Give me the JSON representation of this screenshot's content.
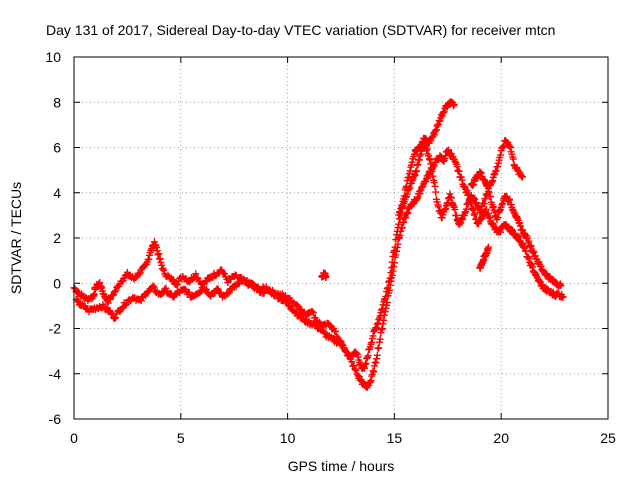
{
  "chart_data": {
    "type": "scatter",
    "title": "Day 131 of 2017, Sidereal Day-to-day VTEC variation (SDTVAR) for receiver mtcn",
    "xlabel": "GPS time / hours",
    "ylabel": "SDTVAR / TECUs",
    "xlim": [
      0,
      25
    ],
    "ylim": [
      -6,
      10
    ],
    "xticks": [
      "0",
      "5",
      "10",
      "15",
      "20",
      "25"
    ],
    "yticks": [
      "-6",
      "-4",
      "-2",
      "0",
      "2",
      "4",
      "6",
      "8",
      "10"
    ],
    "grid": true,
    "marker": "plus",
    "series": [
      {
        "name": "SDTVAR",
        "color": "#ff0000",
        "traces": [
          {
            "x": [
              0.0,
              0.3,
              0.6,
              0.9,
              1.0,
              1.2,
              1.4,
              1.6,
              1.9,
              2.2,
              2.5,
              2.8,
              3.1,
              3.4,
              3.6,
              3.8,
              4.0,
              4.2,
              4.5,
              4.8,
              5.1,
              5.4,
              5.7,
              6.0,
              6.3,
              6.6,
              6.9,
              7.2,
              7.5,
              7.8,
              8.1,
              8.4,
              8.7,
              9.0,
              9.3,
              9.6,
              9.9,
              10.2,
              10.5,
              10.8,
              11.1,
              11.4,
              11.7,
              12.0,
              12.3,
              12.6,
              12.9,
              13.2,
              13.4,
              13.6,
              13.8,
              14.0,
              14.2,
              14.4,
              14.6,
              14.8,
              15.0,
              15.2,
              15.4,
              15.6,
              15.8,
              16.0,
              16.2,
              16.4,
              16.6,
              16.8,
              17.0,
              17.2,
              17.4,
              17.6,
              17.8
            ],
            "y": [
              -0.2,
              -0.5,
              -0.7,
              -0.6,
              -0.2,
              0.0,
              -0.5,
              -0.8,
              -0.4,
              0.1,
              0.4,
              0.2,
              0.5,
              0.8,
              1.5,
              1.8,
              1.1,
              0.5,
              0.2,
              0.0,
              0.3,
              0.1,
              0.4,
              -0.1,
              0.2,
              0.4,
              0.6,
              0.1,
              0.3,
              0.2,
              0.0,
              -0.1,
              -0.3,
              -0.2,
              -0.4,
              -0.5,
              -0.6,
              -0.8,
              -1.0,
              -1.4,
              -1.2,
              -1.7,
              -1.9,
              -1.8,
              -2.3,
              -2.8,
              -3.3,
              -3.0,
              -3.6,
              -3.8,
              -3.0,
              -2.3,
              -1.8,
              -1.2,
              -0.5,
              0.3,
              1.5,
              2.6,
              3.6,
              4.5,
              5.3,
              5.9,
              6.1,
              6.4,
              6.2,
              6.5,
              6.9,
              7.4,
              7.8,
              8.0,
              7.9
            ]
          },
          {
            "x": [
              0.1,
              0.4,
              0.7,
              1.0,
              1.3,
              1.6,
              1.9,
              2.2,
              2.5,
              2.8,
              3.1,
              3.4,
              3.7,
              4.0,
              4.3,
              4.6,
              4.9,
              5.2,
              5.5,
              5.8,
              6.1,
              6.4,
              6.7,
              7.0,
              7.3,
              7.6,
              7.9,
              8.2,
              8.5,
              8.8,
              9.1,
              9.4,
              9.7,
              10.0,
              10.3,
              10.6,
              10.9,
              11.2,
              11.5,
              11.8,
              12.1,
              12.4,
              12.7,
              13.0,
              13.3,
              13.5,
              13.7,
              13.9,
              14.1,
              14.3,
              14.5,
              14.7,
              14.9,
              15.1,
              15.3,
              15.5,
              15.7,
              15.9,
              16.1,
              16.3,
              16.5,
              16.7,
              16.9,
              17.1,
              17.3,
              17.5,
              17.7,
              17.9,
              18.1,
              18.3,
              18.5,
              18.7,
              18.9,
              19.1,
              19.3,
              19.5,
              19.7,
              19.9,
              20.1,
              20.3,
              20.5,
              20.7,
              20.9,
              21.1,
              21.3,
              21.5,
              21.7,
              21.9,
              22.1,
              22.3,
              22.5,
              22.7,
              22.9
            ],
            "y": [
              -0.8,
              -1.0,
              -1.2,
              -1.1,
              -1.0,
              -1.2,
              -1.5,
              -1.1,
              -0.8,
              -0.6,
              -0.8,
              -0.4,
              -0.2,
              -0.5,
              -0.3,
              -0.6,
              -0.4,
              -0.3,
              -0.6,
              -0.4,
              -0.2,
              -0.5,
              -0.3,
              -0.6,
              -0.3,
              -0.1,
              0.1,
              0.0,
              -0.2,
              -0.4,
              -0.3,
              -0.5,
              -0.7,
              -0.9,
              -1.2,
              -1.5,
              -1.7,
              -1.8,
              -2.0,
              -2.3,
              -2.5,
              -2.6,
              -2.9,
              -3.5,
              -4.1,
              -4.4,
              -4.6,
              -4.3,
              -3.6,
              -2.6,
              -1.6,
              -0.6,
              0.4,
              1.5,
              2.3,
              2.9,
              3.3,
              3.6,
              3.8,
              4.3,
              4.6,
              5.0,
              5.3,
              5.6,
              5.4,
              5.9,
              5.6,
              5.2,
              4.7,
              4.2,
              3.8,
              3.2,
              2.6,
              2.9,
              3.2,
              2.8,
              2.4,
              2.2,
              2.6,
              2.5,
              2.3,
              2.1,
              1.9,
              1.5,
              1.0,
              0.6,
              0.2,
              -0.1,
              -0.3,
              -0.4,
              -0.5,
              -0.5,
              -0.6
            ]
          },
          {
            "x": [
              15.2,
              15.4,
              15.6,
              15.8,
              16.0,
              16.2,
              16.4,
              16.6,
              16.8,
              17.0,
              17.2,
              17.4,
              17.6,
              17.8,
              18.0,
              18.2,
              18.4,
              18.6,
              18.8,
              19.0,
              19.2,
              19.4,
              19.6,
              19.8,
              20.0,
              20.2,
              20.4,
              20.6,
              20.8,
              21.0,
              21.2,
              21.4,
              21.6,
              21.8,
              22.0,
              22.2,
              22.4,
              22.6,
              22.8
            ],
            "y": [
              3.1,
              3.5,
              4.0,
              4.4,
              4.9,
              5.6,
              6.2,
              5.7,
              4.8,
              3.6,
              2.9,
              3.3,
              3.9,
              3.3,
              2.6,
              2.9,
              3.4,
              3.8,
              3.6,
              3.2,
              3.6,
              4.1,
              3.4,
              2.9,
              3.4,
              3.9,
              3.6,
              3.2,
              2.7,
              2.3,
              2.0,
              1.6,
              1.2,
              0.8,
              0.5,
              0.3,
              0.1,
              0.0,
              -0.1
            ]
          },
          {
            "x": [
              18.6,
              18.8,
              19.0,
              19.2,
              19.4,
              19.6,
              19.8,
              20.0,
              20.2,
              20.4,
              20.6,
              20.8,
              21.0
            ],
            "y": [
              4.3,
              4.6,
              4.9,
              4.6,
              4.2,
              4.6,
              5.1,
              5.8,
              6.3,
              6.1,
              5.3,
              4.9,
              4.7
            ]
          },
          {
            "x": [
              19.0,
              19.1,
              19.2,
              19.3,
              19.4
            ],
            "y": [
              0.7,
              0.9,
              1.1,
              1.3,
              1.6
            ]
          },
          {
            "x": [
              11.6,
              11.7,
              11.8
            ],
            "y": [
              0.3,
              0.4,
              0.3
            ]
          }
        ]
      }
    ]
  }
}
